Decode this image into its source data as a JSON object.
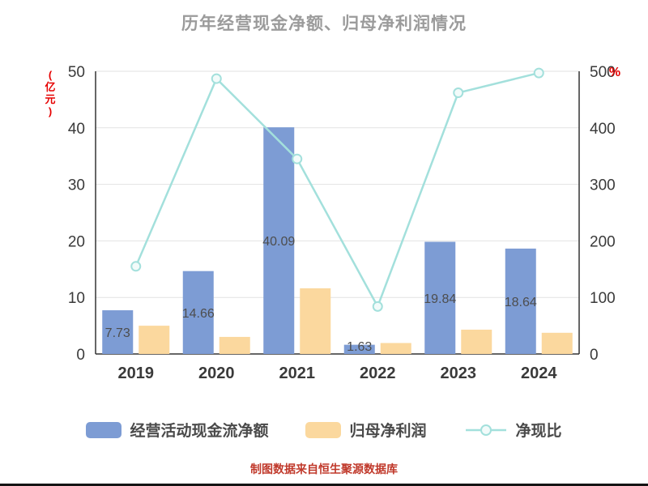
{
  "title": "历年经营现金净额、归母净利润情况",
  "footer_note": "制图数据来自恒生聚源数据库",
  "colors": {
    "bar_cashflow": "#7D9CD4",
    "bar_profit": "#FBD89E",
    "line_ratio": "#A3E0DC",
    "marker_fill": "#F2FBFA",
    "title_text": "#9B9B9B",
    "axis_unit_text": "#E60000",
    "footer_text": "#C0392B",
    "axis_text": "#3A3A3A",
    "bar_label_text": "#4D4D4D",
    "grid_line": "#E2E2E2",
    "axis_line": "#333333"
  },
  "chart_data": {
    "type": "bar",
    "subtype": "bar+line combo, dual y-axis",
    "title": "历年经营现金净额、归母净利润情况",
    "categories": [
      "2019",
      "2020",
      "2021",
      "2022",
      "2023",
      "2024"
    ],
    "series": [
      {
        "name": "经营活动现金流净额",
        "type": "bar",
        "axis": "left",
        "values": [
          7.73,
          14.66,
          40.09,
          1.63,
          19.84,
          18.64
        ],
        "labels": [
          "7.73",
          "14.66",
          "40.09",
          "1.63",
          "19.84",
          "18.64"
        ]
      },
      {
        "name": "归母净利润",
        "type": "bar",
        "axis": "left",
        "values": [
          5.0,
          3.02,
          11.62,
          1.94,
          4.3,
          3.75
        ]
      },
      {
        "name": "净现比",
        "type": "line",
        "axis": "right",
        "values": [
          155,
          487,
          345,
          84,
          462,
          497
        ]
      }
    ],
    "left_axis": {
      "label": "(亿元)",
      "min": 0,
      "max": 50,
      "ticks": [
        0,
        10,
        20,
        30,
        40,
        50
      ]
    },
    "right_axis": {
      "label": "%",
      "min": 0,
      "max": 500,
      "ticks": [
        0,
        100,
        200,
        300,
        400,
        500
      ]
    },
    "grid": true,
    "legend_position": "bottom"
  },
  "legend": [
    {
      "label": "经营活动现金流净额",
      "swatch": "bar",
      "color": "#7D9CD4"
    },
    {
      "label": "归母净利润",
      "swatch": "bar",
      "color": "#FBD89E"
    },
    {
      "label": "净现比",
      "swatch": "line",
      "color": "#A3E0DC"
    }
  ]
}
